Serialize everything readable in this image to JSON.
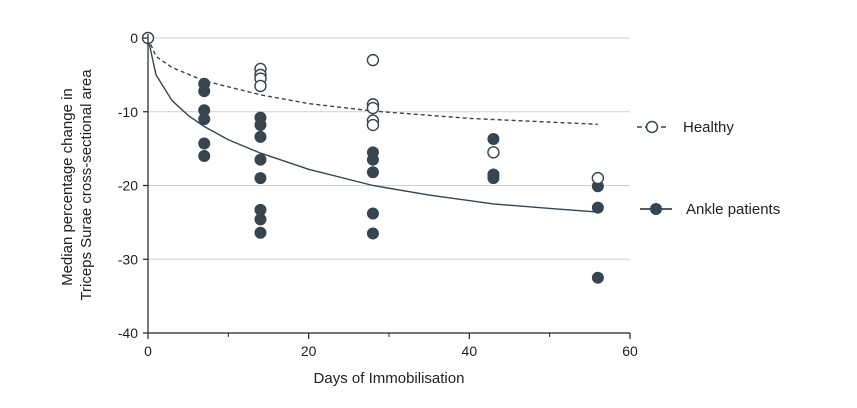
{
  "chart_data": {
    "type": "scatter",
    "xlabel": "Days of Immobilisation",
    "ylabel_lines": [
      "Median percentage change in",
      "Triceps Surae cross-sectional area"
    ],
    "xlim": [
      0,
      60
    ],
    "ylim": [
      -40,
      0
    ],
    "x_ticks": [
      0,
      20,
      40,
      60
    ],
    "x_minor_ticks": [
      10,
      30,
      50
    ],
    "y_ticks": [
      0,
      -10,
      -20,
      -30,
      -40
    ],
    "grid": "horizontal",
    "legend_position": "right",
    "colors": {
      "ankle": "#36454f",
      "healthy": "#36454f",
      "grid": "#cfcfcf",
      "axis": "#222222"
    },
    "series": [
      {
        "name": "Healthy",
        "marker": "open-circle",
        "line": "dashed",
        "points": [
          [
            0,
            0
          ],
          [
            14,
            -4.2
          ],
          [
            14,
            -5.0
          ],
          [
            14,
            -5.5
          ],
          [
            14,
            -6.5
          ],
          [
            28,
            -3.0
          ],
          [
            28,
            -9.0
          ],
          [
            28,
            -9.5
          ],
          [
            28,
            -11.2
          ],
          [
            28,
            -11.8
          ],
          [
            43,
            -15.5
          ],
          [
            56,
            -19.0
          ]
        ],
        "fit_curve": [
          [
            0,
            0
          ],
          [
            1,
            -2.5
          ],
          [
            3,
            -4.0
          ],
          [
            7,
            -5.8
          ],
          [
            14,
            -7.7
          ],
          [
            20,
            -8.9
          ],
          [
            28,
            -9.9
          ],
          [
            40,
            -10.9
          ],
          [
            56,
            -11.7
          ]
        ]
      },
      {
        "name": "Ankle patients",
        "marker": "filled-circle",
        "line": "solid",
        "points": [
          [
            0,
            0
          ],
          [
            7,
            -6.2
          ],
          [
            7,
            -7.2
          ],
          [
            7,
            -9.8
          ],
          [
            7,
            -11.0
          ],
          [
            7,
            -14.3
          ],
          [
            7,
            -16.0
          ],
          [
            14,
            -10.8
          ],
          [
            14,
            -11.8
          ],
          [
            14,
            -13.4
          ],
          [
            14,
            -16.5
          ],
          [
            14,
            -19.0
          ],
          [
            14,
            -23.3
          ],
          [
            14,
            -24.6
          ],
          [
            14,
            -26.4
          ],
          [
            28,
            -15.5
          ],
          [
            28,
            -16.5
          ],
          [
            28,
            -18.2
          ],
          [
            28,
            -23.8
          ],
          [
            28,
            -26.5
          ],
          [
            43,
            -13.7
          ],
          [
            43,
            -18.5
          ],
          [
            43,
            -19.0
          ],
          [
            56,
            -20.1
          ],
          [
            56,
            -23.0
          ],
          [
            56,
            -32.5
          ]
        ],
        "fit_curve": [
          [
            0,
            0
          ],
          [
            1,
            -5.0
          ],
          [
            3,
            -8.5
          ],
          [
            5,
            -10.5
          ],
          [
            7,
            -12.0
          ],
          [
            10,
            -13.8
          ],
          [
            14,
            -15.6
          ],
          [
            20,
            -17.8
          ],
          [
            28,
            -20.0
          ],
          [
            35,
            -21.3
          ],
          [
            43,
            -22.5
          ],
          [
            50,
            -23.1
          ],
          [
            56,
            -23.6
          ]
        ]
      }
    ]
  }
}
